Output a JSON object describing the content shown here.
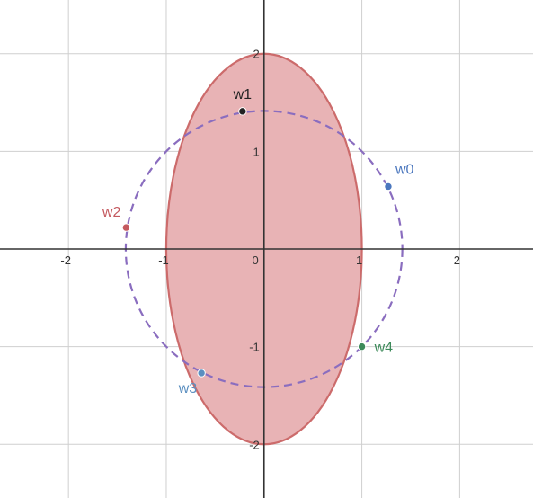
{
  "chart_data": {
    "type": "scatter",
    "xlim": [
      -2.7,
      2.75
    ],
    "ylim": [
      -2.55,
      2.55
    ],
    "grid": true,
    "x_ticks": [
      {
        "value": -2,
        "label": "-2"
      },
      {
        "value": -1,
        "label": "-1"
      },
      {
        "value": 1,
        "label": "1"
      },
      {
        "value": 2,
        "label": "2"
      }
    ],
    "y_ticks": [
      {
        "value": 2,
        "label": "2"
      },
      {
        "value": 1,
        "label": "1"
      },
      {
        "value": -1,
        "label": "-1"
      },
      {
        "value": -2,
        "label": "-2"
      }
    ],
    "origin_label": "0",
    "shapes": [
      {
        "kind": "ellipse",
        "cx": 0,
        "cy": 0,
        "rx": 1,
        "ry": 2,
        "fill": "#e8b3b5",
        "stroke": "#cc6b6b",
        "dashed": false
      },
      {
        "kind": "circle",
        "cx": 0,
        "cy": 0,
        "r": 1.414,
        "fill": "none",
        "stroke": "#8a6dbf",
        "dashed": true
      }
    ],
    "points": [
      {
        "label": "w0",
        "x": 1.27,
        "y": 0.64,
        "color": "#4b77be",
        "label_anchor": "upper-right"
      },
      {
        "label": "w1",
        "x": -0.22,
        "y": 1.41,
        "color": "#222222",
        "label_anchor": "above"
      },
      {
        "label": "w2",
        "x": -1.41,
        "y": 0.22,
        "color": "#c4595f",
        "label_anchor": "upper-left"
      },
      {
        "label": "w3",
        "x": -0.64,
        "y": -1.27,
        "color": "#5b8fc0",
        "label_anchor": "lower-left"
      },
      {
        "label": "w4",
        "x": 1.0,
        "y": -1.0,
        "color": "#3d8a5a",
        "label_anchor": "right"
      }
    ]
  }
}
